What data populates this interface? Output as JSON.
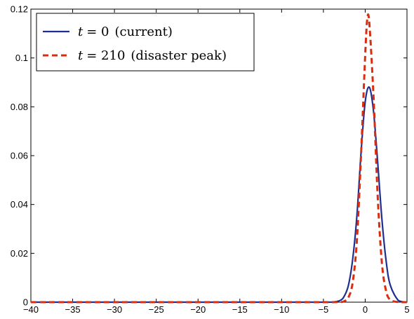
{
  "chart_data": {
    "type": "line",
    "title": "",
    "xlabel": "",
    "ylabel": "",
    "xlim": [
      -40,
      5
    ],
    "ylim": [
      0,
      0.12
    ],
    "x_ticks": [
      -40,
      -35,
      -30,
      -25,
      -20,
      -15,
      -10,
      -5,
      0,
      5
    ],
    "x_tick_labels": [
      "−40",
      "−35",
      "−30",
      "−25",
      "−20",
      "−15",
      "−10",
      "−5",
      "0",
      "5"
    ],
    "y_ticks": [
      0,
      0.02,
      0.04,
      0.06,
      0.08,
      0.1,
      0.12
    ],
    "y_tick_labels": [
      "0",
      "0.02",
      "0.04",
      "0.06",
      "0.08",
      "0.1",
      "0.12"
    ],
    "grid": false,
    "legend_position": "top-left",
    "series": [
      {
        "name": "t = 0 (current)",
        "legend_var": "t",
        "legend_value": "= 0",
        "legend_desc": "(current)",
        "color": "#1f2f8f",
        "style": "solid",
        "x": [
          -40,
          -10,
          -5,
          -4,
          -3,
          -2.5,
          -2,
          -1.5,
          -1,
          -0.5,
          0,
          0.5,
          1,
          1.5,
          2,
          2.5,
          3,
          4,
          5
        ],
        "y": [
          0,
          0,
          1.5e-06,
          4e-05,
          0.0007,
          0.0025,
          0.007,
          0.0175,
          0.035,
          0.061,
          0.082,
          0.088,
          0.078,
          0.057,
          0.034,
          0.017,
          0.007,
          0.0006,
          2e-05
        ]
      },
      {
        "name": "t = 210 (disaster peak)",
        "legend_var": "t",
        "legend_value": "= 210",
        "legend_desc": "(disaster peak)",
        "color": "#d62e0f",
        "style": "dashed",
        "x": [
          -40,
          -10,
          -5,
          -3,
          -2.5,
          -2,
          -1.5,
          -1,
          -0.5,
          0,
          0.25,
          0.5,
          1,
          1.5,
          2,
          2.5,
          3,
          4,
          5
        ],
        "y": [
          0,
          0,
          0,
          5e-05,
          0.0004,
          0.002,
          0.008,
          0.025,
          0.06,
          0.101,
          0.116,
          0.114,
          0.084,
          0.043,
          0.016,
          0.0046,
          0.001,
          2e-05,
          0
        ]
      }
    ]
  }
}
